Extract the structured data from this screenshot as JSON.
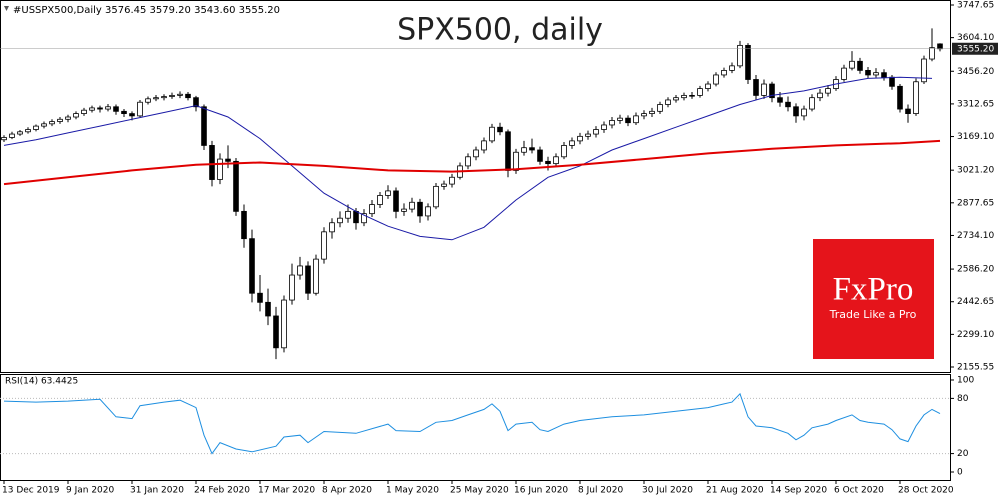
{
  "chart_data": {
    "type": "candlestick",
    "title": "SPX500, daily",
    "header": "#USSPX500,Daily  3576.45 3579.20 3543.60 3555.20",
    "last_price": {
      "value": 3555.2,
      "label": "3555.20"
    },
    "grid": false,
    "xlim": [
      -0.5,
      118.25
    ],
    "ylim": [
      2133.6,
      3769.6
    ],
    "yticks": [
      3747.65,
      {
        "value": 3604.1,
        "label": "3604.10"
      },
      {
        "value": 3456.2,
        "label": "3456.20"
      },
      3312.65,
      {
        "value": 3169.1,
        "label": "3169.10"
      },
      {
        "value": 3021.2,
        "label": "3021.20"
      },
      2877.65,
      {
        "value": 2734.1,
        "label": "2734.10"
      },
      {
        "value": 2586.2,
        "label": "2586.20"
      },
      2442.65,
      {
        "value": 2299.1,
        "label": "2299.10"
      },
      2155.55
    ],
    "xticks": [
      {
        "value": 0,
        "label": "13 Dec 2019"
      },
      {
        "value": 8,
        "label": "9 Jan 2020"
      },
      {
        "value": 16,
        "label": "31 Jan 2020"
      },
      {
        "value": 24,
        "label": "24 Feb 2020"
      },
      {
        "value": 32,
        "label": "17 Mar 2020"
      },
      {
        "value": 40,
        "label": "8 Apr 2020"
      },
      {
        "value": 48,
        "label": "1 May 2020"
      },
      {
        "value": 56,
        "label": "25 May 2020"
      },
      {
        "value": 64,
        "label": "16 Jun 2020"
      },
      {
        "value": 72,
        "label": "8 Jul 2020"
      },
      {
        "value": 80,
        "label": "30 Jul 2020"
      },
      {
        "value": 88,
        "label": "21 Aug 2020"
      },
      {
        "value": 96,
        "label": "14 Sep 2020"
      },
      {
        "value": 104,
        "label": "6 Oct 2020"
      },
      {
        "value": 112,
        "label": "28 Oct 2020"
      }
    ],
    "up_color": "#ffffff",
    "down_color": "#000000",
    "wick_color": "#000000",
    "ohlc": [
      [
        3155,
        3175,
        3145,
        3165
      ],
      [
        3165,
        3190,
        3158,
        3180
      ],
      [
        3180,
        3198,
        3172,
        3190
      ],
      [
        3190,
        3210,
        3182,
        3200
      ],
      [
        3200,
        3222,
        3192,
        3215
      ],
      [
        3215,
        3235,
        3205,
        3225
      ],
      [
        3225,
        3245,
        3215,
        3235
      ],
      [
        3235,
        3255,
        3225,
        3245
      ],
      [
        3245,
        3265,
        3232,
        3255
      ],
      [
        3255,
        3280,
        3245,
        3270
      ],
      [
        3270,
        3295,
        3260,
        3285
      ],
      [
        3285,
        3305,
        3275,
        3295
      ],
      [
        3295,
        3305,
        3275,
        3290
      ],
      [
        3290,
        3312,
        3280,
        3300
      ],
      [
        3300,
        3310,
        3265,
        3280
      ],
      [
        3280,
        3290,
        3255,
        3270
      ],
      [
        3270,
        3280,
        3240,
        3260
      ],
      [
        3260,
        3330,
        3255,
        3320
      ],
      [
        3320,
        3345,
        3310,
        3335
      ],
      [
        3335,
        3352,
        3325,
        3340
      ],
      [
        3340,
        3355,
        3328,
        3345
      ],
      [
        3345,
        3362,
        3335,
        3350
      ],
      [
        3350,
        3368,
        3338,
        3355
      ],
      [
        3355,
        3365,
        3328,
        3340
      ],
      [
        3340,
        3348,
        3280,
        3300
      ],
      [
        3300,
        3310,
        3110,
        3130
      ],
      [
        3130,
        3150,
        2950,
        2980
      ],
      [
        2980,
        3095,
        2960,
        3070
      ],
      [
        3070,
        3130,
        3030,
        3060
      ],
      [
        3060,
        3075,
        2820,
        2840
      ],
      [
        2840,
        2870,
        2680,
        2720
      ],
      [
        2720,
        2760,
        2440,
        2480
      ],
      [
        2480,
        2560,
        2400,
        2440
      ],
      [
        2440,
        2500,
        2340,
        2380
      ],
      [
        2380,
        2420,
        2190,
        2240
      ],
      [
        2240,
        2470,
        2220,
        2450
      ],
      [
        2450,
        2610,
        2430,
        2560
      ],
      [
        2560,
        2640,
        2540,
        2600
      ],
      [
        2600,
        2620,
        2450,
        2480
      ],
      [
        2480,
        2650,
        2470,
        2630
      ],
      [
        2630,
        2770,
        2610,
        2750
      ],
      [
        2750,
        2810,
        2720,
        2790
      ],
      [
        2790,
        2840,
        2770,
        2810
      ],
      [
        2810,
        2870,
        2790,
        2840
      ],
      [
        2840,
        2855,
        2760,
        2790
      ],
      [
        2790,
        2850,
        2775,
        2830
      ],
      [
        2830,
        2890,
        2815,
        2870
      ],
      [
        2870,
        2925,
        2855,
        2910
      ],
      [
        2910,
        2955,
        2895,
        2930
      ],
      [
        2930,
        2945,
        2810,
        2840
      ],
      [
        2840,
        2875,
        2820,
        2850
      ],
      [
        2850,
        2900,
        2835,
        2880
      ],
      [
        2880,
        2895,
        2790,
        2820
      ],
      [
        2820,
        2875,
        2800,
        2860
      ],
      [
        2860,
        2965,
        2850,
        2950
      ],
      [
        2950,
        2975,
        2935,
        2960
      ],
      [
        2960,
        3005,
        2945,
        2990
      ],
      [
        2990,
        3055,
        2980,
        3040
      ],
      [
        3040,
        3095,
        3025,
        3080
      ],
      [
        3080,
        3125,
        3065,
        3110
      ],
      [
        3110,
        3165,
        3095,
        3150
      ],
      [
        3150,
        3225,
        3140,
        3210
      ],
      [
        3210,
        3230,
        3175,
        3190
      ],
      [
        3190,
        3200,
        2990,
        3020
      ],
      [
        3020,
        3115,
        3005,
        3100
      ],
      [
        3100,
        3150,
        3085,
        3120
      ],
      [
        3120,
        3160,
        3095,
        3110
      ],
      [
        3110,
        3125,
        3045,
        3060
      ],
      [
        3060,
        3080,
        3020,
        3050
      ],
      [
        3050,
        3095,
        3035,
        3080
      ],
      [
        3080,
        3145,
        3070,
        3130
      ],
      [
        3130,
        3165,
        3115,
        3150
      ],
      [
        3150,
        3185,
        3135,
        3170
      ],
      [
        3170,
        3195,
        3155,
        3180
      ],
      [
        3180,
        3215,
        3165,
        3200
      ],
      [
        3200,
        3235,
        3185,
        3220
      ],
      [
        3220,
        3255,
        3205,
        3240
      ],
      [
        3240,
        3265,
        3225,
        3250
      ],
      [
        3250,
        3262,
        3215,
        3230
      ],
      [
        3230,
        3275,
        3220,
        3260
      ],
      [
        3260,
        3285,
        3245,
        3270
      ],
      [
        3270,
        3295,
        3255,
        3280
      ],
      [
        3280,
        3322,
        3268,
        3310
      ],
      [
        3310,
        3342,
        3298,
        3330
      ],
      [
        3330,
        3352,
        3318,
        3340
      ],
      [
        3340,
        3362,
        3328,
        3350
      ],
      [
        3350,
        3365,
        3335,
        3350
      ],
      [
        3350,
        3392,
        3340,
        3380
      ],
      [
        3380,
        3412,
        3368,
        3400
      ],
      [
        3400,
        3452,
        3390,
        3440
      ],
      [
        3440,
        3472,
        3428,
        3460
      ],
      [
        3460,
        3495,
        3448,
        3480
      ],
      [
        3480,
        3590,
        3470,
        3570
      ],
      [
        3570,
        3580,
        3400,
        3420
      ],
      [
        3420,
        3440,
        3330,
        3350
      ],
      [
        3350,
        3420,
        3335,
        3400
      ],
      [
        3400,
        3410,
        3320,
        3340
      ],
      [
        3340,
        3365,
        3300,
        3320
      ],
      [
        3320,
        3345,
        3280,
        3300
      ],
      [
        3300,
        3315,
        3230,
        3260
      ],
      [
        3260,
        3305,
        3240,
        3290
      ],
      [
        3290,
        3355,
        3280,
        3340
      ],
      [
        3340,
        3378,
        3325,
        3360
      ],
      [
        3360,
        3395,
        3345,
        3380
      ],
      [
        3380,
        3435,
        3370,
        3420
      ],
      [
        3420,
        3485,
        3410,
        3470
      ],
      [
        3470,
        3545,
        3460,
        3500
      ],
      [
        3500,
        3515,
        3445,
        3460
      ],
      [
        3460,
        3475,
        3425,
        3440
      ],
      [
        3440,
        3470,
        3428,
        3450
      ],
      [
        3450,
        3465,
        3415,
        3430
      ],
      [
        3430,
        3440,
        3375,
        3390
      ],
      [
        3390,
        3400,
        3275,
        3290
      ],
      [
        3290,
        3310,
        3230,
        3270
      ],
      [
        3270,
        3425,
        3260,
        3410
      ],
      [
        3410,
        3525,
        3400,
        3510
      ],
      [
        3510,
        3645,
        3500,
        3560
      ],
      [
        3576.45,
        3579.2,
        3543.6,
        3555.2
      ]
    ],
    "ma": [
      {
        "color": "#1a1aa6",
        "x": [
          0,
          4,
          8,
          12,
          16,
          20,
          24,
          28,
          32,
          36,
          40,
          44,
          48,
          52,
          56,
          60,
          64,
          68,
          72,
          76,
          80,
          84,
          88,
          92,
          96,
          100,
          104,
          108,
          112,
          116
        ],
        "values": [
          3130,
          3155,
          3185,
          3215,
          3245,
          3275,
          3305,
          3255,
          3160,
          3040,
          2920,
          2840,
          2775,
          2730,
          2715,
          2770,
          2890,
          2990,
          3040,
          3110,
          3160,
          3210,
          3260,
          3310,
          3350,
          3370,
          3400,
          3425,
          3430,
          3425
        ]
      },
      {
        "color": "#e00000",
        "x": [
          0,
          8,
          16,
          24,
          32,
          40,
          48,
          56,
          64,
          72,
          80,
          88,
          96,
          104,
          112,
          117
        ],
        "values": [
          2960,
          2990,
          3020,
          3045,
          3055,
          3040,
          3020,
          3015,
          3025,
          3045,
          3070,
          3095,
          3115,
          3130,
          3140,
          3150
        ]
      }
    ],
    "rsi": {
      "label": "RSI(14) 63.4425",
      "color": "#1e8fe0",
      "ylim": [
        -8.7,
        106.5
      ],
      "yticks": [
        100,
        80,
        20,
        0
      ],
      "levels": [
        80,
        20
      ],
      "x": [
        0,
        4,
        8,
        12,
        14,
        16,
        17,
        20,
        22,
        24,
        25,
        26,
        27,
        29,
        31,
        34,
        35,
        37,
        38,
        40,
        44,
        48,
        49,
        52,
        54,
        56,
        58,
        60,
        61,
        62,
        63,
        64,
        66,
        67,
        68,
        70,
        72,
        76,
        80,
        84,
        88,
        90,
        91,
        92,
        93,
        94,
        96,
        98,
        99,
        100,
        101,
        103,
        104,
        106,
        107,
        108,
        110,
        111,
        112,
        113,
        114,
        115,
        116,
        117
      ],
      "values": [
        77,
        76,
        77,
        79,
        60,
        58,
        72,
        76,
        78,
        70,
        40,
        20,
        32,
        25,
        22,
        28,
        38,
        40,
        32,
        44,
        42,
        52,
        45,
        44,
        54,
        56,
        62,
        68,
        74,
        66,
        45,
        52,
        54,
        46,
        44,
        52,
        56,
        60,
        62,
        66,
        70,
        74,
        76,
        85,
        60,
        50,
        48,
        42,
        35,
        40,
        48,
        52,
        56,
        62,
        56,
        54,
        52,
        46,
        36,
        33,
        50,
        62,
        68,
        63.4425
      ]
    }
  },
  "logo": {
    "brand": "FxPro",
    "tagline": "Trade Like a Pro"
  }
}
